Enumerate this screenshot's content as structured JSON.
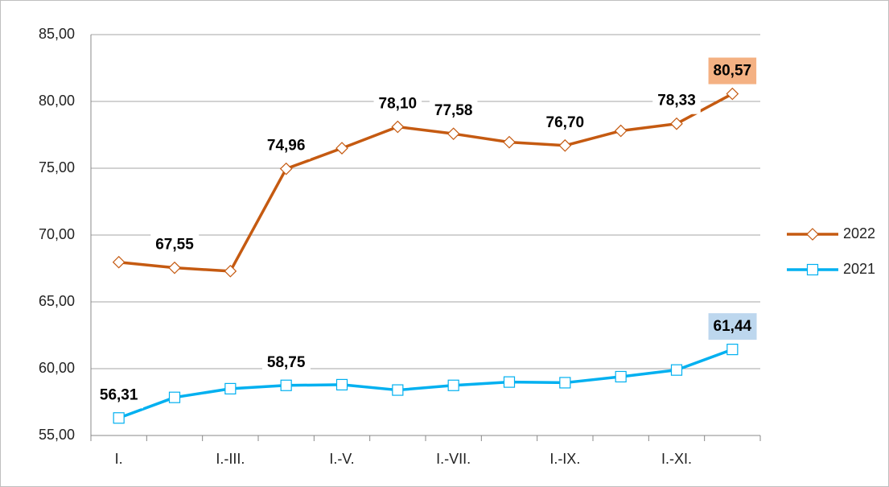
{
  "chart_data": {
    "type": "line",
    "categories": [
      "I.",
      null,
      "I.-III.",
      null,
      "I.-V.",
      null,
      "I.-VII.",
      null,
      "I.-IX.",
      null,
      "I.-XI.",
      null
    ],
    "series": [
      {
        "name": "2022",
        "color": "#c55a11",
        "marker": "diamond",
        "label_background": "#f4b183",
        "values": [
          67.97,
          67.55,
          67.3,
          74.96,
          76.5,
          78.1,
          77.58,
          76.95,
          76.7,
          77.8,
          78.33,
          80.57
        ],
        "value_labels": [
          null,
          "67,55",
          null,
          "74,96",
          null,
          "78,10",
          "77,58",
          null,
          "76,70",
          null,
          "78,33",
          "80,57"
        ]
      },
      {
        "name": "2021",
        "color": "#00b0f0",
        "marker": "square",
        "label_background": "#bdd7ee",
        "values": [
          56.31,
          57.85,
          58.5,
          58.75,
          58.8,
          58.4,
          58.75,
          59.0,
          58.95,
          59.4,
          59.9,
          61.44
        ],
        "value_labels": [
          "56,31",
          null,
          null,
          "58,75",
          null,
          null,
          null,
          null,
          null,
          null,
          null,
          "61,44"
        ]
      }
    ],
    "ylim": [
      55,
      85
    ],
    "yticks": [
      {
        "value": 55,
        "label": "55,00"
      },
      {
        "value": 60,
        "label": "60,00"
      },
      {
        "value": 65,
        "label": "65,00"
      },
      {
        "value": 70,
        "label": "70,00"
      },
      {
        "value": 75,
        "label": "75,00"
      },
      {
        "value": 80,
        "label": "80,00"
      },
      {
        "value": 85,
        "label": "85,00"
      }
    ],
    "grid": true,
    "legend": "right"
  }
}
